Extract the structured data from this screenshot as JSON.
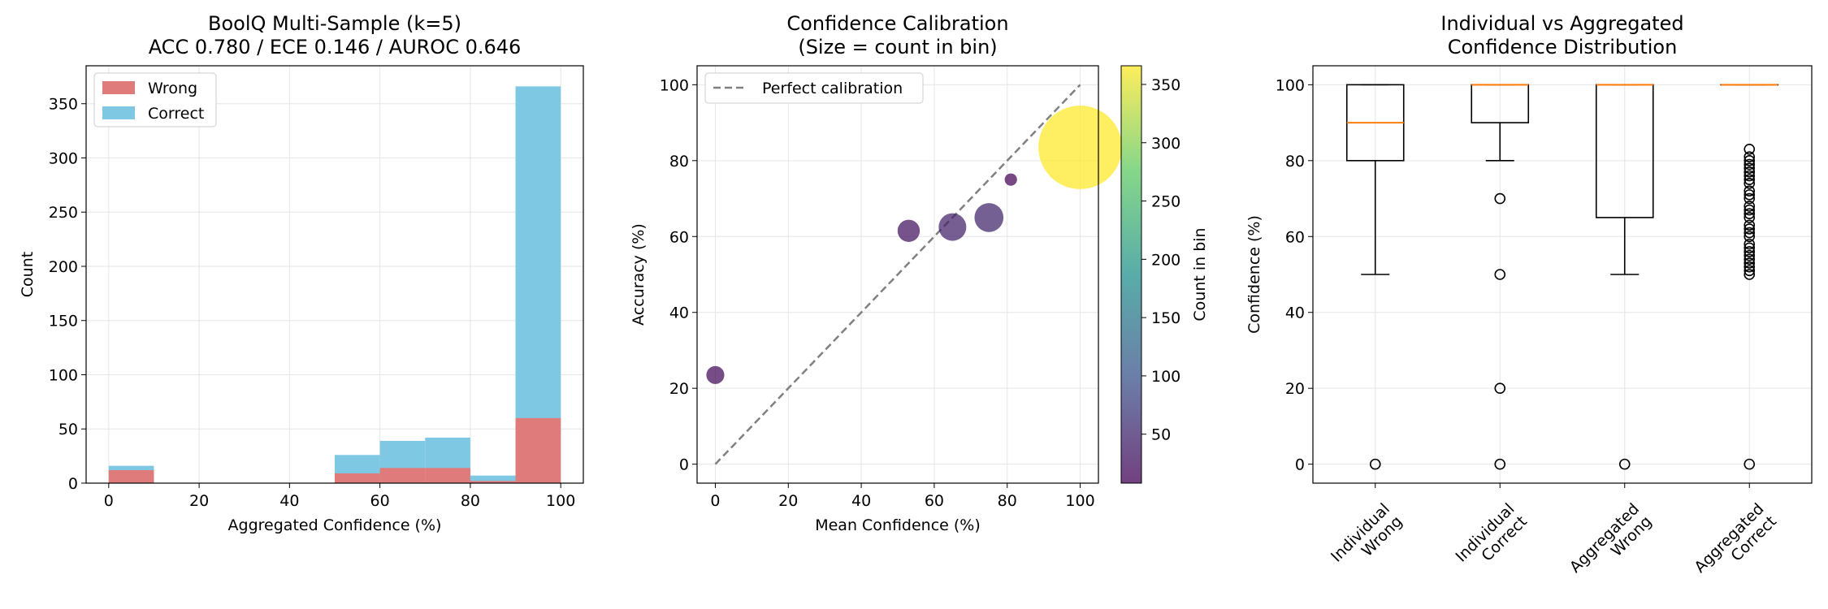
{
  "figure": {
    "background": "#ffffff"
  },
  "chart_data": [
    {
      "type": "bar",
      "title": "BoolQ Multi-Sample (k=5)\nACC 0.780 / ECE 0.146 / AUROC 0.646",
      "xlabel": "Aggregated Confidence (%)",
      "ylabel": "Count",
      "xlim": [
        -5,
        105
      ],
      "ylim": [
        0,
        385
      ],
      "xticks": [
        0,
        20,
        40,
        60,
        80,
        100
      ],
      "yticks": [
        0,
        50,
        100,
        150,
        200,
        250,
        300,
        350
      ],
      "grid": true,
      "legend": "top-left",
      "bin_edges": [
        0,
        10,
        20,
        30,
        40,
        50,
        60,
        70,
        80,
        90,
        100
      ],
      "series": [
        {
          "name": "Wrong",
          "color": "#e07b7b",
          "values": [
            12,
            0,
            0,
            0,
            0,
            9,
            14,
            14,
            2,
            60
          ]
        },
        {
          "name": "Correct",
          "color": "#7ec8e3",
          "values": [
            16,
            0,
            0,
            0,
            0,
            26,
            39,
            42,
            7,
            366
          ]
        }
      ]
    },
    {
      "type": "scatter",
      "title": "Confidence Calibration\n(Size = count in bin)",
      "xlabel": "Mean Confidence (%)",
      "ylabel": "Accuracy (%)",
      "xlim": [
        -5,
        105
      ],
      "ylim": [
        -5,
        105
      ],
      "xticks": [
        0,
        20,
        40,
        60,
        80,
        100
      ],
      "yticks": [
        0,
        20,
        40,
        60,
        80,
        100
      ],
      "grid": true,
      "legend": "top-left",
      "reference_line": {
        "name": "Perfect calibration",
        "x": [
          0,
          100
        ],
        "y": [
          0,
          100
        ],
        "style": "dashed",
        "color": "#808080"
      },
      "points": [
        {
          "x": 0,
          "y": 23.5,
          "count": 17
        },
        {
          "x": 53,
          "y": 61.5,
          "count": 26
        },
        {
          "x": 65,
          "y": 62.5,
          "count": 40
        },
        {
          "x": 75,
          "y": 65,
          "count": 44
        },
        {
          "x": 81,
          "y": 75,
          "count": 8
        },
        {
          "x": 100,
          "y": 83.5,
          "count": 366
        }
      ],
      "colorbar": {
        "label": "Count in bin",
        "colormap": "viridis",
        "min": 8,
        "max": 366,
        "ticks": [
          50,
          100,
          150,
          200,
          250,
          300,
          350
        ],
        "stops": [
          "#440154",
          "#3b528b",
          "#21918c",
          "#5ec962",
          "#fde725"
        ]
      }
    },
    {
      "type": "box",
      "title": "Individual vs Aggregated\nConfidence Distribution",
      "ylabel": "Confidence (%)",
      "ylim": [
        -5,
        105
      ],
      "yticks": [
        0,
        20,
        40,
        60,
        80,
        100
      ],
      "grid": true,
      "categories": [
        "Individual\nWrong",
        "Individual\nCorrect",
        "Aggregated\nWrong",
        "Aggregated\nCorrect"
      ],
      "median_color": "#ff7f0e",
      "boxes": [
        {
          "q1": 80,
          "median": 90,
          "q3": 100,
          "whisker_low": 50,
          "whisker_high": 100,
          "outliers": [
            0
          ]
        },
        {
          "q1": 90,
          "median": 100,
          "q3": 100,
          "whisker_low": 80,
          "whisker_high": 100,
          "outliers": [
            70,
            50,
            20,
            0
          ]
        },
        {
          "q1": 65,
          "median": 100,
          "q3": 100,
          "whisker_low": 50,
          "whisker_high": 100,
          "outliers": [
            0
          ]
        },
        {
          "q1": 100,
          "median": 100,
          "q3": 100,
          "whisker_low": 100,
          "whisker_high": 100,
          "outliers": [
            83,
            81,
            80,
            79,
            78,
            77,
            76,
            75,
            74,
            72,
            71,
            70,
            68,
            67,
            66,
            65,
            63,
            62,
            61,
            60,
            58,
            57,
            56,
            55,
            54,
            53,
            52,
            51,
            50,
            0
          ]
        }
      ]
    }
  ]
}
